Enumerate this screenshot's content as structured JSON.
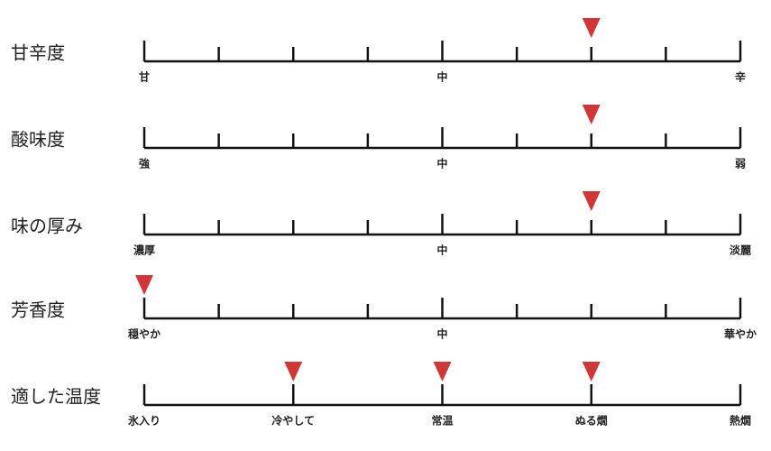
{
  "scales": [
    {
      "label": "甘辛度",
      "ticks": [
        "甘",
        null,
        null,
        null,
        "中",
        null,
        null,
        null,
        "辛"
      ],
      "markers": [
        6
      ]
    },
    {
      "label": "酸味度",
      "ticks": [
        "強",
        null,
        null,
        null,
        "中",
        null,
        null,
        null,
        "弱"
      ],
      "markers": [
        6
      ]
    },
    {
      "label": "味の厚み",
      "ticks": [
        "濃厚",
        null,
        null,
        null,
        "中",
        null,
        null,
        null,
        "淡麗"
      ],
      "markers": [
        6
      ]
    },
    {
      "label": "芳香度",
      "ticks": [
        "穏やか",
        null,
        null,
        null,
        "中",
        null,
        null,
        null,
        "華やか"
      ],
      "markers": [
        0
      ]
    },
    {
      "label": "適した温度",
      "ticks": [
        "氷入り",
        "冷やして",
        "常温",
        "ぬる燗",
        "熱燗"
      ],
      "markers": [
        1,
        2,
        3
      ]
    }
  ]
}
